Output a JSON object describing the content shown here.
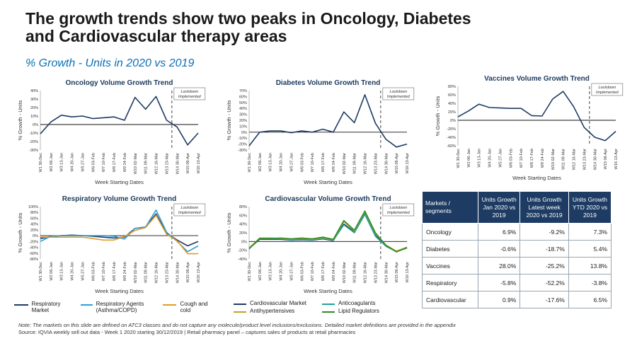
{
  "page": {
    "title": "The growth trends show two peaks in Oncology, Diabetes and Cardiovascular therapy areas",
    "subtitle": "% Growth - Units in 2020 vs 2019",
    "note": "Note: The markets on this slide are defined on ATC3 classes and do not capture any molecule/product level inclusions/exclusions. Detailed market definitions are provided in the appendix",
    "source": "Source: IQVIA  weekly sell out data - Week 1 2020 starting 30/12/2019 | Retail pharmacy panel – captures sales of products at retail pharmacies"
  },
  "colors": {
    "navy": "#1d3b63",
    "light_blue": "#2e9fd8",
    "orange": "#e39b2a",
    "green": "#2f8a2a",
    "teal": "#1fa39a",
    "olive": "#b8a826"
  },
  "week_labels": [
    "W1 30-Dec",
    "W2 06-Jan",
    "W3 13-Jan",
    "W4 20-Jan",
    "W5 27-Jan",
    "W6 03-Feb",
    "W7 10-Feb",
    "W8 17-Feb",
    "W9 24-Feb",
    "W10 02-Mar",
    "W11 09-Mar",
    "W12 16-Mar",
    "W13 23-Mar",
    "W14 30-Mar",
    "W15 06-Apr",
    "W16 13-Apr"
  ],
  "chart_data": [
    {
      "id": "oncology",
      "type": "line",
      "title": "Oncology Volume Growth Trend",
      "xlabel": "Week Starting Dates",
      "ylabel": "% Growth - Units",
      "ylim": [
        -30,
        40
      ],
      "yticks": [
        "40%",
        "30%",
        "20%",
        "10%",
        "0%",
        "-10%",
        "-20%",
        "-30%"
      ],
      "lockdown_label": "Lockdown Implemented",
      "lockdown_after_index": 13,
      "series": [
        {
          "color": "navy",
          "values": [
            -11,
            3,
            11,
            9,
            10,
            7,
            8,
            9,
            5,
            32,
            18,
            33,
            5,
            -3,
            -24,
            -10
          ]
        }
      ]
    },
    {
      "id": "diabetes",
      "type": "line",
      "title": "Diabetes Volume Growth Trend",
      "xlabel": "Week Starting Dates",
      "ylabel": "% Growth - Units",
      "ylim": [
        -30,
        70
      ],
      "yticks": [
        "70%",
        "60%",
        "50%",
        "40%",
        "30%",
        "20%",
        "10%",
        "0%",
        "-10%",
        "-20%",
        "-30%"
      ],
      "lockdown_label": "Lockdown Implemented",
      "lockdown_after_index": 13,
      "series": [
        {
          "color": "navy",
          "values": [
            -23,
            0,
            2,
            2,
            -1,
            2,
            0,
            5,
            0,
            34,
            16,
            63,
            15,
            -12,
            -25,
            -20
          ]
        }
      ]
    },
    {
      "id": "vaccines",
      "type": "line",
      "title": "Vaccines Volume Growth Trend",
      "xlabel": "Week Starting Dates",
      "ylabel": "% Growth - Units",
      "ylim": [
        -60,
        80
      ],
      "yticks": [
        "80%",
        "60%",
        "40%",
        "20%",
        "0%",
        "-20%",
        "-40%",
        "-60%"
      ],
      "lockdown_label": "Lockdown Implemented",
      "lockdown_after_index": 13,
      "series": [
        {
          "color": "navy",
          "values": [
            8,
            22,
            38,
            30,
            29,
            28,
            28,
            11,
            10,
            50,
            68,
            32,
            -17,
            -40,
            -48,
            -26
          ]
        }
      ]
    },
    {
      "id": "respiratory",
      "type": "line",
      "title": "Respiratory Volume Growth Trend",
      "xlabel": "Week Starting Dates",
      "ylabel": "% Growth - Units",
      "ylim": [
        -80,
        100
      ],
      "yticks": [
        "100%",
        "80%",
        "60%",
        "40%",
        "20%",
        "0%",
        "-20%",
        "-40%",
        "-60%",
        "-80%"
      ],
      "lockdown_label": "Lockdown Implemented",
      "lockdown_after_index": 13,
      "series": [
        {
          "name": "Respiratory Market",
          "color": "navy",
          "values": [
            -10,
            -3,
            0,
            2,
            0,
            -2,
            -5,
            -8,
            -5,
            25,
            30,
            75,
            8,
            -15,
            -35,
            -20
          ]
        },
        {
          "name": "Respiratory Agents (Asthma/COPD)",
          "color": "light_blue",
          "values": [
            -20,
            -2,
            0,
            0,
            0,
            0,
            0,
            -2,
            -12,
            25,
            30,
            88,
            12,
            -20,
            -55,
            -35
          ]
        },
        {
          "name": "Cough and cold",
          "color": "orange",
          "values": [
            -5,
            -5,
            -5,
            -5,
            -5,
            -10,
            -15,
            -15,
            -3,
            18,
            28,
            70,
            5,
            -18,
            -62,
            -62
          ]
        }
      ]
    },
    {
      "id": "cardiovascular",
      "type": "line",
      "title": "Cardiovascular Volume Growth Trend",
      "xlabel": "Week Starting Dates",
      "ylabel": "% Growth - Units",
      "ylim": [
        -40,
        80
      ],
      "yticks": [
        "80%",
        "60%",
        "40%",
        "20%",
        "0%",
        "-20%",
        "-40%"
      ],
      "lockdown_label": "Lockdown Implemented",
      "lockdown_after_index": 13,
      "series": [
        {
          "name": "Cardiovascular Market",
          "color": "navy",
          "values": [
            -16,
            5,
            5,
            5,
            3,
            4,
            3,
            6,
            2,
            40,
            22,
            65,
            14,
            -10,
            -22,
            -14
          ]
        },
        {
          "name": "Anticoagulants",
          "color": "teal",
          "values": [
            -14,
            6,
            6,
            6,
            4,
            5,
            4,
            7,
            3,
            38,
            20,
            62,
            12,
            -11,
            -23,
            -15
          ]
        },
        {
          "name": "Antihypertensives",
          "color": "olive",
          "values": [
            -15,
            8,
            8,
            7,
            5,
            7,
            5,
            9,
            4,
            46,
            24,
            68,
            18,
            -8,
            -22,
            -13
          ]
        },
        {
          "name": "Lipid Regulators",
          "color": "green",
          "values": [
            -17,
            7,
            7,
            8,
            6,
            8,
            6,
            10,
            5,
            48,
            26,
            70,
            20,
            -9,
            -24,
            -14
          ]
        }
      ]
    }
  ],
  "table": {
    "headers": [
      "Markets / segments",
      "Units Growth Jan 2020 vs 2019",
      "Units Growth Latest week 2020 vs 2019",
      "Units Growth YTD 2020 vs 2019"
    ],
    "rows": [
      [
        "Oncology",
        "6.9%",
        "-9.2%",
        "7.3%"
      ],
      [
        "Diabetes",
        "-0.6%",
        "-18.7%",
        "5.4%"
      ],
      [
        "Vaccines",
        "28.0%",
        "-25.2%",
        "13.8%"
      ],
      [
        "Respiratory",
        "-5.8%",
        "-52.2%",
        "-3.8%"
      ],
      [
        "Cardiovascular",
        "0.9%",
        "-17.6%",
        "6.5%"
      ]
    ]
  },
  "legends": {
    "respiratory": [
      "Respiratory Market",
      "Respiratory Agents (Asthma/COPD)",
      "Cough and cold"
    ],
    "cardiovascular": [
      "Cardiovascular Market",
      "Anticoagulants",
      "Antihypertensives",
      "Lipid Regulators"
    ]
  }
}
